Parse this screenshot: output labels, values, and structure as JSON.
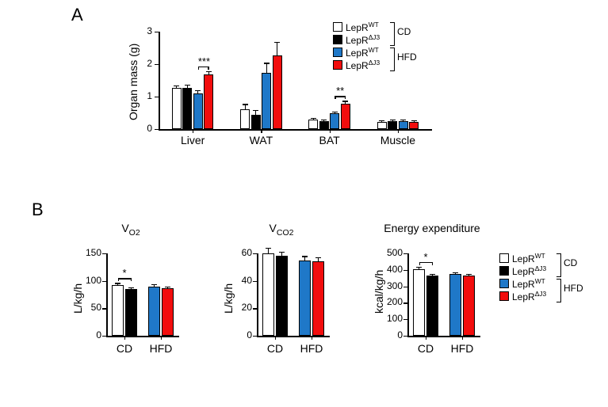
{
  "colors": {
    "wt_cd": "#ffffff",
    "dj3_cd": "#000000",
    "wt_hfd": "#1f78c8",
    "dj3_hfd": "#f20d0d",
    "axis": "#000000",
    "bg": "#ffffff"
  },
  "legend": {
    "items": [
      {
        "label": "LepR",
        "sup": "WT",
        "group": "CD"
      },
      {
        "label": "LepR",
        "sup": "ΔJ3",
        "group": "CD"
      },
      {
        "label": "LepR",
        "sup": "WT",
        "group": "HFD"
      },
      {
        "label": "LepR",
        "sup": "ΔJ3",
        "group": "HFD"
      }
    ],
    "group1": "CD",
    "group2": "HFD"
  },
  "panelA": {
    "label": "A",
    "ylabel": "Organ mass (g)",
    "ylim": [
      0,
      3
    ],
    "ytick_step": 1,
    "categories": [
      "Liver",
      "WAT",
      "BAT",
      "Muscle"
    ],
    "series": [
      {
        "key": "wt_cd",
        "values": [
          1.27,
          0.62,
          0.3,
          0.23
        ],
        "err": [
          0.07,
          0.15,
          0.04,
          0.04
        ]
      },
      {
        "key": "dj3_cd",
        "values": [
          1.27,
          0.45,
          0.25,
          0.25
        ],
        "err": [
          0.09,
          0.14,
          0.05,
          0.05
        ]
      },
      {
        "key": "wt_hfd",
        "values": [
          1.1,
          1.72,
          0.48,
          0.25
        ],
        "err": [
          0.09,
          0.32,
          0.06,
          0.05
        ]
      },
      {
        "key": "dj3_hfd",
        "values": [
          1.68,
          2.28,
          0.78,
          0.23
        ],
        "err": [
          0.1,
          0.4,
          0.09,
          0.05
        ]
      }
    ],
    "sig": [
      {
        "cat": 0,
        "from": 2,
        "to": 3,
        "text": "***"
      },
      {
        "cat": 2,
        "from": 2,
        "to": 3,
        "text": "**"
      }
    ]
  },
  "panelB": {
    "label": "B",
    "charts": [
      {
        "title": "V",
        "title_sub": "O2",
        "ylabel": "L/kg/h",
        "ylim": [
          0,
          150
        ],
        "ytick_step": 50,
        "categories": [
          "CD",
          "HFD"
        ],
        "series": [
          {
            "key": "wt_cd",
            "values": [
              92
            ],
            "err": [
              4
            ]
          },
          {
            "key": "dj3_cd",
            "values": [
              85
            ],
            "err": [
              3
            ]
          },
          {
            "key": "wt_hfd",
            "values": [
              90
            ],
            "err": [
              4
            ]
          },
          {
            "key": "dj3_hfd",
            "values": [
              87
            ],
            "err": [
              3
            ]
          }
        ],
        "sig": [
          {
            "group": 0,
            "from": 0,
            "to": 1,
            "text": "*"
          }
        ]
      },
      {
        "title": "V",
        "title_sub": "CO2",
        "ylabel": "L/kg/h",
        "ylim": [
          0,
          60
        ],
        "ytick_step": 20,
        "categories": [
          "CD",
          "HFD"
        ],
        "series": [
          {
            "key": "wt_cd",
            "values": [
              60
            ],
            "err": [
              4
            ]
          },
          {
            "key": "dj3_cd",
            "values": [
              58
            ],
            "err": [
              3
            ]
          },
          {
            "key": "wt_hfd",
            "values": [
              55
            ],
            "err": [
              3
            ]
          },
          {
            "key": "dj3_hfd",
            "values": [
              54
            ],
            "err": [
              3
            ]
          }
        ],
        "sig": []
      },
      {
        "title": "Energy expenditure",
        "title_sub": "",
        "ylabel": "kcal/kg/h",
        "ylim": [
          0,
          500
        ],
        "ytick_step": 100,
        "categories": [
          "CD",
          "HFD"
        ],
        "series": [
          {
            "key": "wt_cd",
            "values": [
              405
            ],
            "err": [
              12
            ]
          },
          {
            "key": "dj3_cd",
            "values": [
              365
            ],
            "err": [
              10
            ]
          },
          {
            "key": "wt_hfd",
            "values": [
              375
            ],
            "err": [
              12
            ]
          },
          {
            "key": "dj3_hfd",
            "values": [
              365
            ],
            "err": [
              10
            ]
          }
        ],
        "sig": [
          {
            "group": 0,
            "from": 0,
            "to": 1,
            "text": "*"
          }
        ]
      }
    ]
  }
}
